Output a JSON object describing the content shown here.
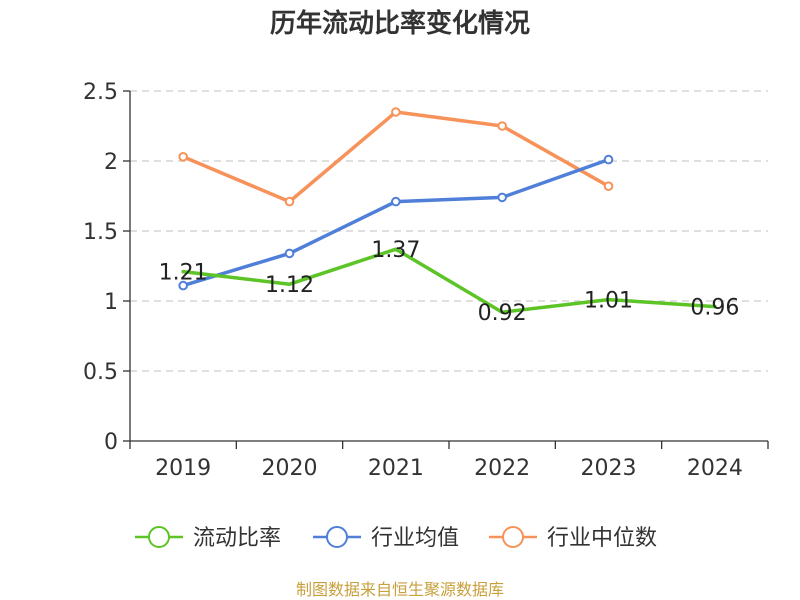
{
  "chart_data": {
    "type": "line",
    "title": "历年流动比率变化情况",
    "categories": [
      "2019",
      "2020",
      "2021",
      "2022",
      "2023",
      "2024"
    ],
    "ylim": [
      0,
      2.5
    ],
    "y_ticks": [
      0,
      0.5,
      1,
      1.5,
      2,
      2.5
    ],
    "y_tick_labels": [
      "0",
      "0.5",
      "1",
      "1.5",
      "2",
      "2.5"
    ],
    "grid": true,
    "legend_position": "bottom",
    "series": [
      {
        "name": "流动比率",
        "color": "#5cc427",
        "values": [
          1.21,
          1.12,
          1.37,
          0.92,
          1.01,
          0.96
        ],
        "labels": [
          "1.21",
          "1.12",
          "1.37",
          "0.92",
          "1.01",
          "0.96"
        ],
        "show_markers": false
      },
      {
        "name": "行业均值",
        "color": "#4f7fd9",
        "values": [
          1.11,
          1.34,
          1.71,
          1.74,
          2.01,
          null
        ],
        "show_markers": true
      },
      {
        "name": "行业中位数",
        "color": "#f6925a",
        "values": [
          2.03,
          1.71,
          2.35,
          2.25,
          1.82,
          null
        ],
        "show_markers": true
      }
    ]
  },
  "source": "制图数据来自恒生聚源数据库"
}
